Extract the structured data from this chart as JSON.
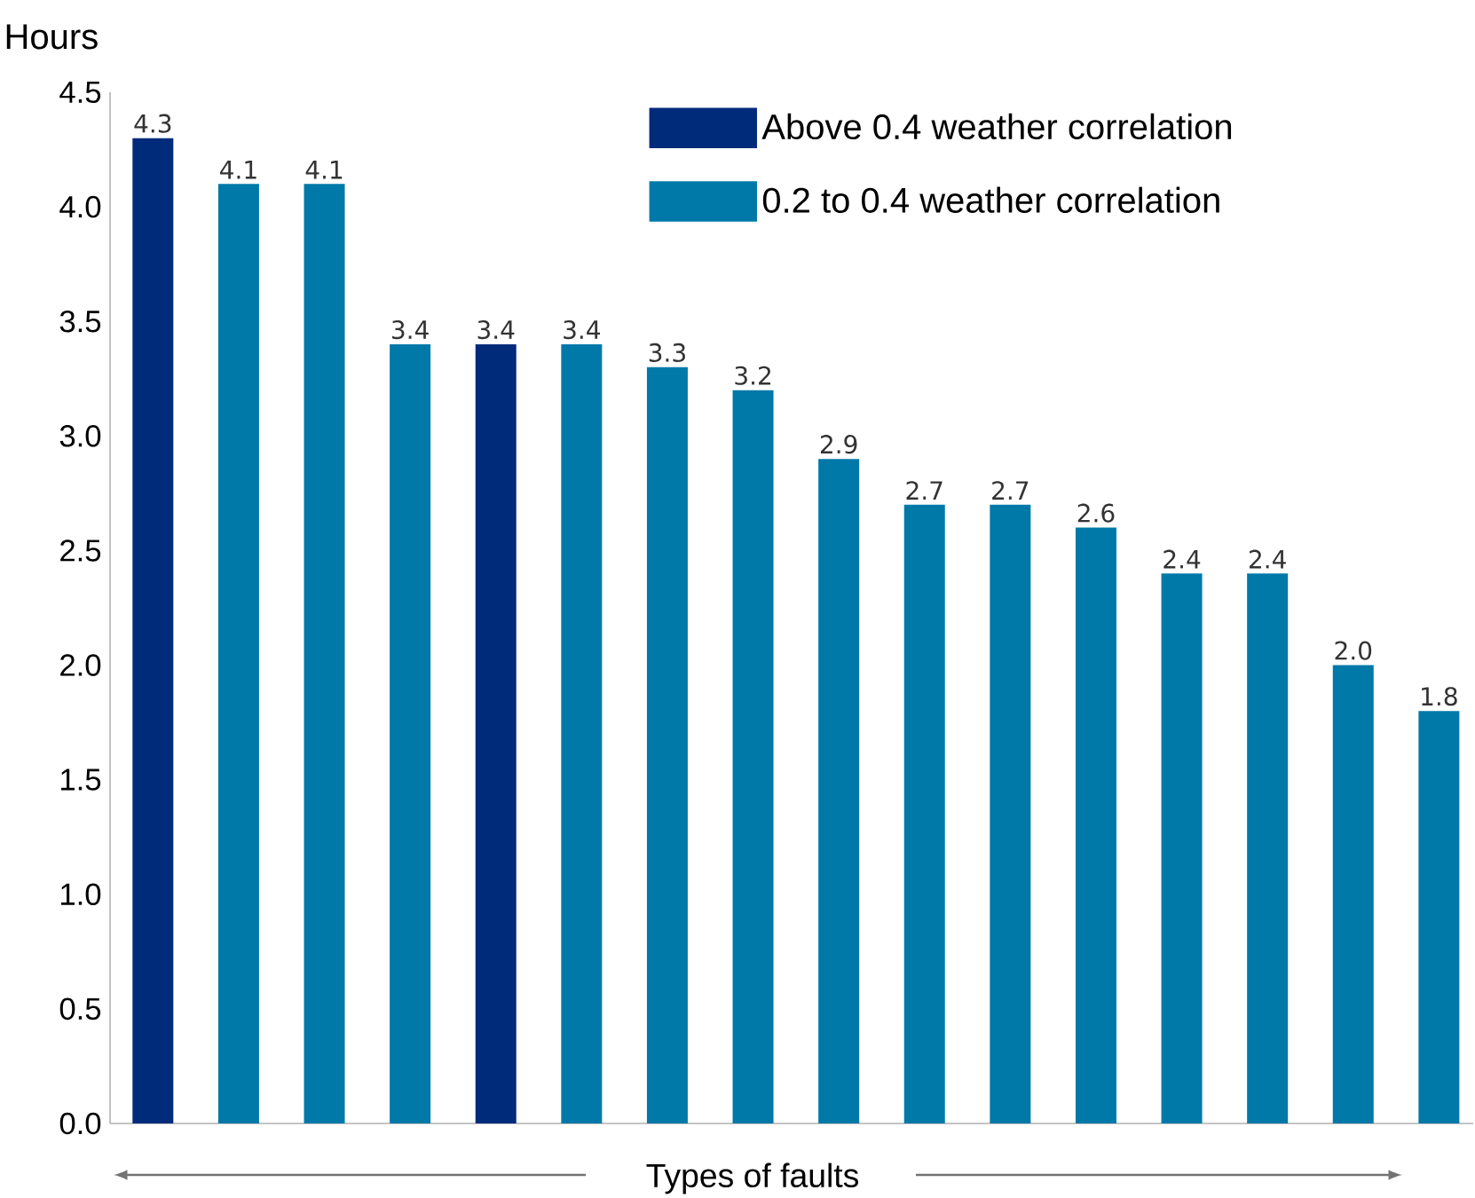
{
  "chart_data": {
    "type": "bar",
    "ylabel": "Hours",
    "xlabel": "Types of faults",
    "categories": [
      null,
      null,
      null,
      null,
      null,
      null,
      null,
      null,
      null,
      null,
      null,
      null,
      null,
      null,
      null,
      null
    ],
    "series": [
      {
        "name": "Above 0.4 weather correlation",
        "color": "#002b7a",
        "values": [
          4.3,
          null,
          null,
          null,
          3.4,
          null,
          null,
          null,
          null,
          null,
          null,
          null,
          null,
          null,
          null,
          null
        ],
        "value_labels": [
          "4.3",
          null,
          null,
          null,
          "3.4",
          null,
          null,
          null,
          null,
          null,
          null,
          null,
          null,
          null,
          null,
          null
        ]
      },
      {
        "name": "0.2 to 0.4 weather correlation",
        "color": "#0079a8",
        "values": [
          null,
          4.1,
          4.1,
          3.4,
          null,
          3.4,
          3.3,
          3.2,
          2.9,
          2.7,
          2.7,
          2.6,
          2.4,
          2.4,
          2.0,
          1.8
        ],
        "value_labels": [
          null,
          "4.1",
          "4.1",
          "3.4",
          null,
          "3.4",
          "3.3",
          "3.2",
          "2.9",
          "2.7",
          "2.7",
          "2.6",
          "2.4",
          "2.4",
          "2.0",
          "1.8"
        ]
      }
    ],
    "ylim": [
      0,
      4.5
    ],
    "yticks": [
      {
        "value": 0,
        "label": "0.0"
      },
      0.5,
      {
        "value": 1,
        "label": "1.0"
      },
      1.5,
      {
        "value": 2,
        "label": "2.0"
      },
      2.5,
      {
        "value": 3,
        "label": "3.0"
      },
      3.5,
      {
        "value": 4,
        "label": "4.0"
      },
      4.5
    ],
    "legend": "top right",
    "grid": false
  }
}
